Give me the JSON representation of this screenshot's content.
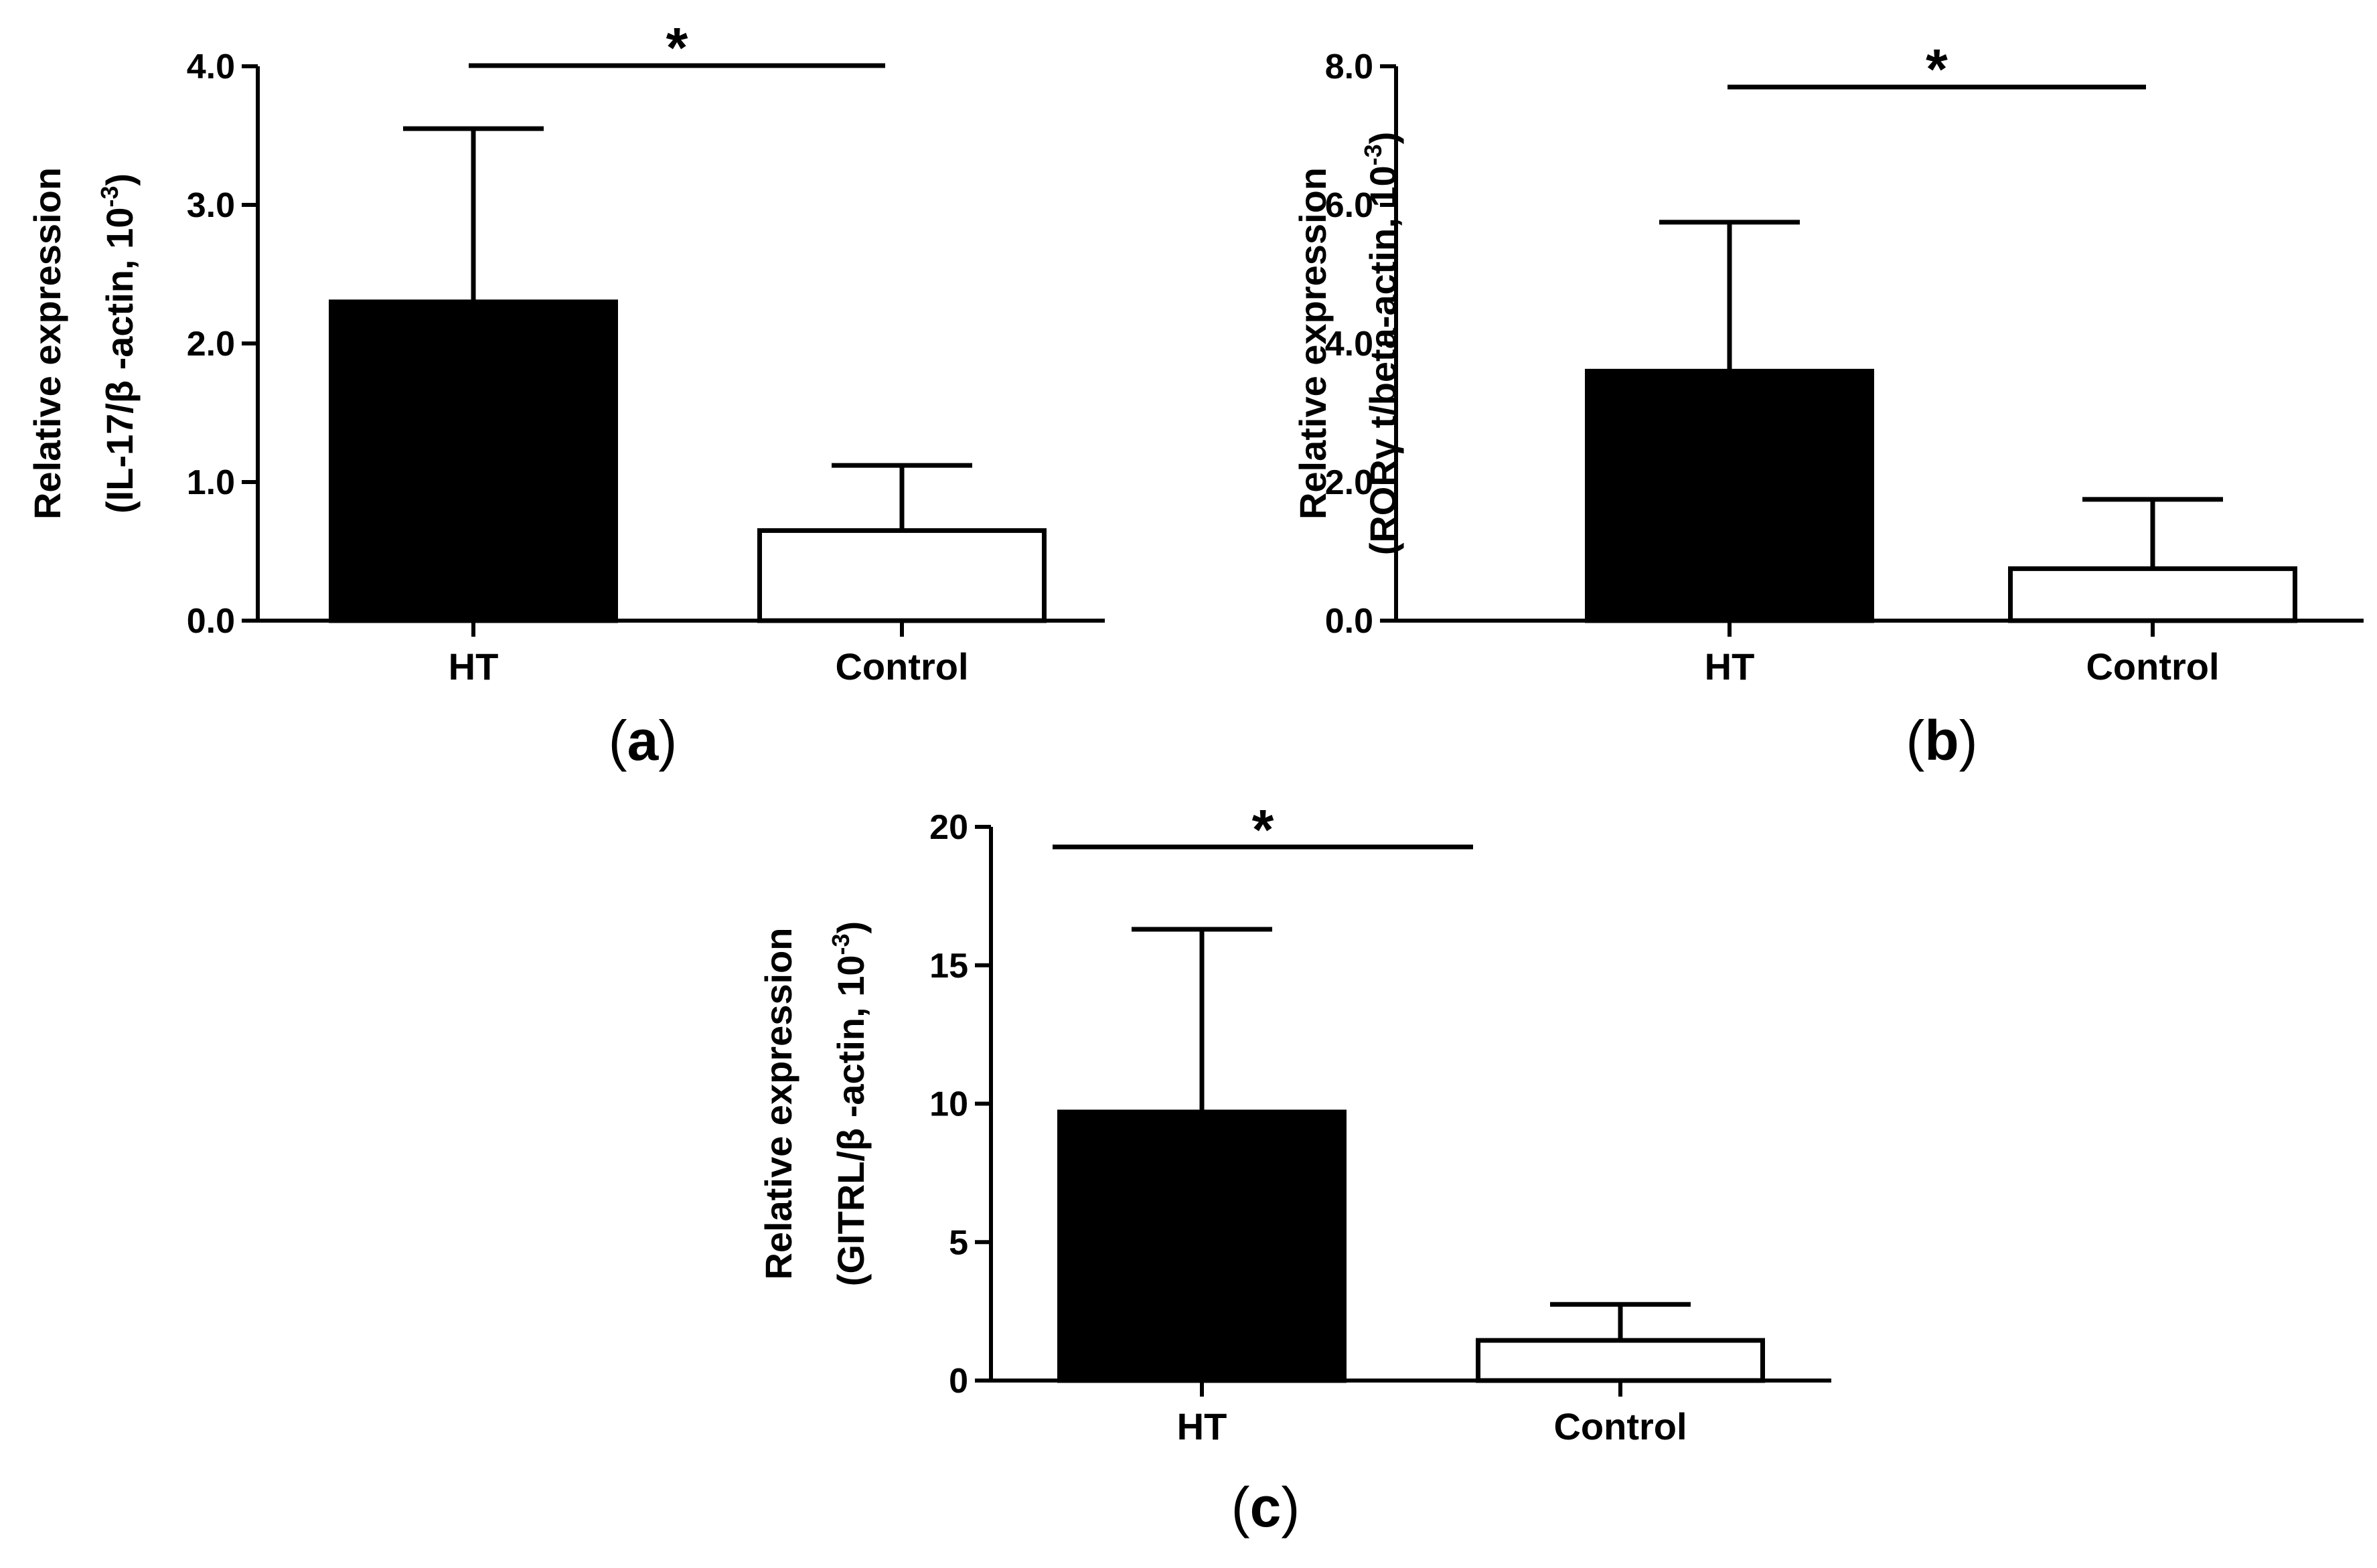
{
  "chart_data": [
    {
      "type": "bar",
      "panel": "a",
      "categories": [
        "HT",
        "Control"
      ],
      "values": [
        2.3,
        0.65
      ],
      "error_upper": [
        1.25,
        0.47
      ],
      "colors": [
        "#000000",
        "#ffffff"
      ],
      "ylim": [
        0,
        4
      ],
      "yticks": [
        {
          "value": 0,
          "label": "0.0"
        },
        {
          "value": 1,
          "label": "1.0"
        },
        {
          "value": 2,
          "label": "2.0"
        },
        {
          "value": 3,
          "label": "3.0"
        },
        {
          "value": 4,
          "label": "4.0"
        }
      ],
      "ylabel_line1": "Relative expression",
      "ylabel_line2_main": "(IL-17/β -actin, 10",
      "ylabel_sup": "-3",
      "ylabel_close": ")",
      "significance": "*",
      "xlabel": ""
    },
    {
      "type": "bar",
      "panel": "b",
      "categories": [
        "HT",
        "Control"
      ],
      "values": [
        3.6,
        0.75
      ],
      "error_upper": [
        2.15,
        1.0
      ],
      "colors": [
        "#000000",
        "#ffffff"
      ],
      "ylim": [
        0,
        8
      ],
      "yticks": [
        {
          "value": 0,
          "label": "0.0"
        },
        {
          "value": 2,
          "label": "2.0"
        },
        {
          "value": 4,
          "label": "4.0"
        },
        {
          "value": 6,
          "label": "6.0"
        },
        {
          "value": 8,
          "label": "8.0"
        }
      ],
      "ylabel_line1": "Relative expression",
      "ylabel_line2_main": "(RORγ t/beta-actin, 10",
      "ylabel_sup": "-3",
      "ylabel_close": ")",
      "significance": "*",
      "xlabel": ""
    },
    {
      "type": "bar",
      "panel": "c",
      "categories": [
        "HT",
        "Control"
      ],
      "values": [
        9.7,
        1.45
      ],
      "error_upper": [
        6.6,
        1.3
      ],
      "colors": [
        "#000000",
        "#ffffff"
      ],
      "ylim": [
        0,
        20
      ],
      "yticks": [
        {
          "value": 0,
          "label": "0"
        },
        {
          "value": 5,
          "label": "5"
        },
        {
          "value": 10,
          "label": "10"
        },
        {
          "value": 15,
          "label": "15"
        },
        {
          "value": 20,
          "label": "20"
        }
      ],
      "ylabel_line1": "Relative expression",
      "ylabel_line2_main": "(GITRL/β -actin, 10",
      "ylabel_sup": "-3",
      "ylabel_close": ")",
      "significance": "*",
      "xlabel": ""
    }
  ]
}
